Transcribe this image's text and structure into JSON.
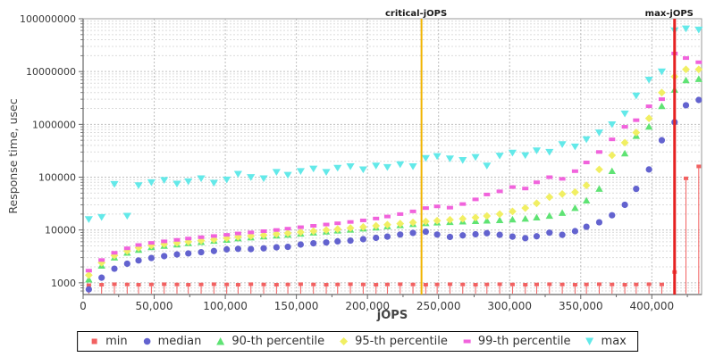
{
  "chart_data": {
    "type": "scatter",
    "title": "",
    "xlabel": "jOPS",
    "ylabel": "Response time, usec",
    "legend_position": "bottom",
    "x_axis": {
      "min": 0,
      "max": 435000,
      "gridlines": true,
      "ticks": [
        0,
        50000,
        100000,
        150000,
        200000,
        250000,
        300000,
        350000,
        400000
      ],
      "tick_labels": [
        "0",
        "50,000",
        "100,000",
        "150,000",
        "200,000",
        "250,000",
        "300,000",
        "350,000",
        "400,000"
      ],
      "minor_tick_step": 25000
    },
    "y_axis": {
      "scale": "log",
      "min": 600,
      "max": 100000000,
      "gridlines": true,
      "ticks": [
        1000,
        10000,
        100000,
        1000000,
        10000000,
        100000000
      ],
      "tick_labels": [
        "1000",
        "10000",
        "100000",
        "1000000",
        "10000000",
        "100000000"
      ]
    },
    "reference_lines": [
      {
        "label": "critical-jOPS",
        "x": 238000,
        "color": "#f0b400",
        "width": 2
      },
      {
        "label": "max-jOPS",
        "x": 416000,
        "color": "#e62222",
        "width": 3
      }
    ],
    "x": [
      4000,
      13000,
      22000,
      31000,
      39000,
      48000,
      57000,
      66000,
      74000,
      83000,
      92000,
      101000,
      109000,
      118000,
      127000,
      136000,
      144000,
      153000,
      162000,
      171000,
      179000,
      188000,
      197000,
      206000,
      214000,
      223000,
      232000,
      241000,
      249000,
      258000,
      267000,
      276000,
      284000,
      293000,
      302000,
      311000,
      319000,
      328000,
      337000,
      346000,
      354000,
      363000,
      372000,
      381000,
      389000,
      398000,
      407000,
      416000,
      424000,
      433000
    ],
    "series": [
      {
        "name": "min",
        "marker": "square-stem",
        "color": "#f26161",
        "y": [
          900,
          920,
          940,
          930,
          920,
          930,
          940,
          930,
          920,
          930,
          940,
          930,
          920,
          940,
          930,
          920,
          930,
          940,
          930,
          920,
          930,
          940,
          930,
          920,
          930,
          940,
          930,
          920,
          930,
          940,
          930,
          920,
          930,
          940,
          930,
          920,
          930,
          940,
          930,
          920,
          930,
          940,
          930,
          920,
          930,
          940,
          930,
          1600,
          95000,
          160000
        ]
      },
      {
        "name": "median",
        "marker": "circle",
        "color": "#6363cf",
        "y": [
          750,
          1250,
          1850,
          2300,
          2650,
          2950,
          3200,
          3450,
          3600,
          3800,
          4000,
          4300,
          4400,
          4350,
          4500,
          4700,
          4800,
          5300,
          5600,
          5800,
          6100,
          6300,
          6700,
          7100,
          7500,
          8200,
          8800,
          9300,
          8200,
          7400,
          7900,
          8300,
          8700,
          8100,
          7500,
          7000,
          7600,
          8900,
          8100,
          9500,
          11500,
          14000,
          19000,
          30000,
          60000,
          140000,
          500000,
          1100000,
          2300000,
          2900000
        ]
      },
      {
        "name": "90-th percentile",
        "marker": "triangle-up",
        "color": "#5fe374",
        "y": [
          1150,
          2100,
          3000,
          3700,
          4200,
          4700,
          5000,
          5300,
          5600,
          5900,
          6200,
          6500,
          6900,
          7200,
          7500,
          7800,
          8100,
          8500,
          8900,
          9300,
          9700,
          10100,
          10600,
          11100,
          11700,
          12300,
          12900,
          13400,
          13800,
          14100,
          14400,
          14700,
          15000,
          15300,
          15700,
          16300,
          17200,
          18500,
          21000,
          26000,
          36000,
          60000,
          130000,
          280000,
          600000,
          900000,
          2200000,
          4500000,
          6800000,
          7200000
        ]
      },
      {
        "name": "95-th percentile",
        "marker": "diamond",
        "color": "#f1ef63",
        "y": [
          1400,
          2400,
          3300,
          4000,
          4600,
          5100,
          5400,
          5700,
          6000,
          6300,
          6600,
          7000,
          7400,
          7700,
          8000,
          8400,
          8700,
          9100,
          9500,
          10000,
          10400,
          10900,
          11400,
          12000,
          12600,
          13200,
          13900,
          14500,
          15000,
          15600,
          16300,
          17200,
          18400,
          20000,
          22500,
          26000,
          32000,
          42000,
          48000,
          52000,
          70000,
          140000,
          260000,
          450000,
          700000,
          1300000,
          4000000,
          8000000,
          11000000,
          11000000
        ]
      },
      {
        "name": "99-th percentile",
        "marker": "hbar",
        "color": "#f163dc",
        "y": [
          1700,
          2700,
          3700,
          4500,
          5200,
          5700,
          6100,
          6500,
          6900,
          7300,
          7700,
          8100,
          8600,
          9000,
          9500,
          10000,
          10600,
          11300,
          12000,
          12700,
          13400,
          14200,
          15200,
          16500,
          18000,
          20000,
          22500,
          26000,
          28000,
          26500,
          31000,
          38000,
          47000,
          54000,
          65000,
          61000,
          80000,
          100000,
          93000,
          130000,
          190000,
          300000,
          520000,
          900000,
          1200000,
          2200000,
          3000000,
          22000000,
          18000000,
          15000000
        ]
      },
      {
        "name": "max",
        "marker": "triangle-down",
        "color": "#63e9e9",
        "y": [
          16000,
          17500,
          74000,
          18500,
          70000,
          80000,
          88000,
          75000,
          83000,
          95000,
          78000,
          90000,
          115000,
          100000,
          95000,
          125000,
          110000,
          130000,
          145000,
          125000,
          150000,
          160000,
          140000,
          165000,
          155000,
          175000,
          160000,
          230000,
          250000,
          225000,
          210000,
          240000,
          165000,
          255000,
          290000,
          260000,
          320000,
          300000,
          420000,
          380000,
          520000,
          700000,
          1000000,
          1600000,
          3500000,
          7000000,
          10000000,
          60000000,
          65000000,
          62000000
        ]
      }
    ]
  },
  "colors": {
    "grid_major": "#c0c0c0",
    "grid_minor": "#dcdcdc",
    "plot_border": "#9a9a9a",
    "axis_line": "#666666",
    "tick_text": "#3a3a3a",
    "label_text": "#1a1a1a"
  }
}
